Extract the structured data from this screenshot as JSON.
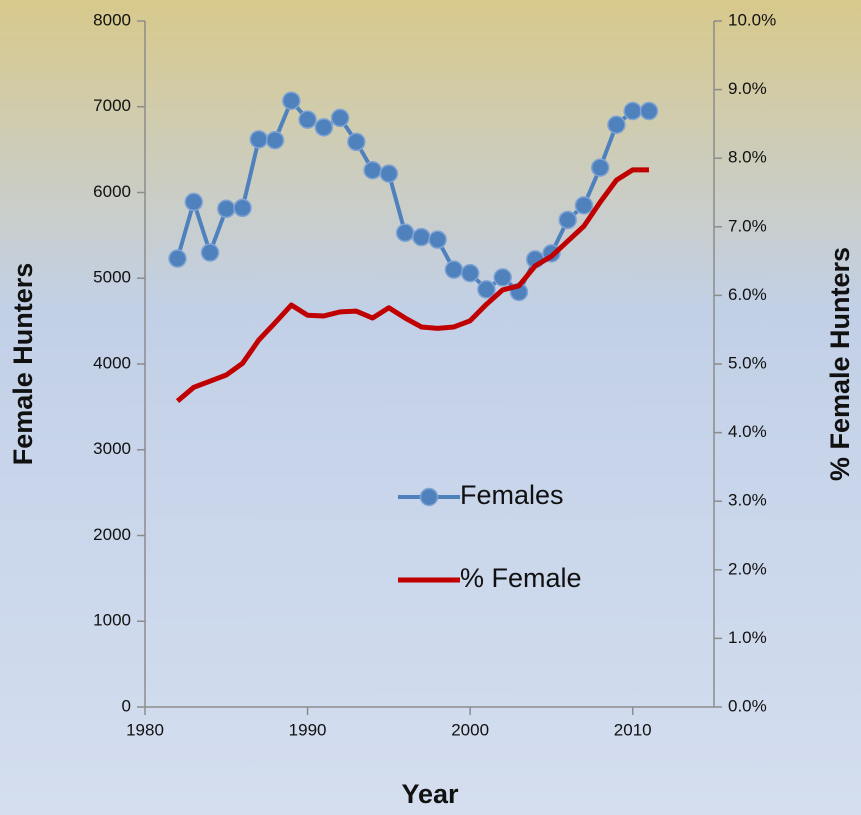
{
  "chart_data": {
    "type": "line",
    "x_label": "Year",
    "y_label": "Female Hunters",
    "y2_label": "% Female Hunters",
    "x": [
      1982,
      1983,
      1984,
      1985,
      1986,
      1987,
      1988,
      1989,
      1990,
      1991,
      1992,
      1993,
      1994,
      1995,
      1996,
      1997,
      1998,
      1999,
      2000,
      2001,
      2002,
      2003,
      2004,
      2005,
      2006,
      2007,
      2008,
      2009,
      2010,
      2011
    ],
    "series": [
      {
        "name": "Females",
        "color": "#4f81bd",
        "marker": "circle",
        "values": [
          5230,
          5890,
          5300,
          5810,
          5820,
          6620,
          6610,
          7070,
          6850,
          6760,
          6870,
          6590,
          6260,
          6220,
          5530,
          5480,
          5450,
          5100,
          5060,
          4870,
          5010,
          4840,
          5220,
          5290,
          5680,
          5850,
          6290,
          6790,
          6950,
          6950
        ]
      },
      {
        "name": "% Female",
        "color": "#c00000",
        "axis": "y2",
        "values": [
          4.46,
          4.66,
          4.75,
          4.84,
          5.01,
          5.35,
          5.6,
          5.86,
          5.71,
          5.7,
          5.76,
          5.77,
          5.67,
          5.82,
          5.67,
          5.54,
          5.52,
          5.54,
          5.63,
          5.87,
          6.08,
          6.14,
          6.43,
          6.57,
          6.79,
          7.01,
          7.36,
          7.68,
          7.83,
          7.83
        ]
      }
    ],
    "xlim": [
      1980,
      2015
    ],
    "xticks": [
      1980,
      1990,
      2000,
      2010
    ],
    "ylim": [
      0,
      8000
    ],
    "yticks": [
      0,
      1000,
      2000,
      3000,
      4000,
      5000,
      6000,
      7000,
      8000
    ],
    "y2lim": [
      0,
      10
    ],
    "y2ticks": [
      {
        "value": 0,
        "label": "0.0%"
      },
      {
        "value": 1,
        "label": "1.0%"
      },
      {
        "value": 2,
        "label": "2.0%"
      },
      {
        "value": 3,
        "label": "3.0%"
      },
      {
        "value": 4,
        "label": "4.0%"
      },
      {
        "value": 5,
        "label": "5.0%"
      },
      {
        "value": 6,
        "label": "6.0%"
      },
      {
        "value": 7,
        "label": "7.0%"
      },
      {
        "value": 8,
        "label": "8.0%"
      },
      {
        "value": 9,
        "label": "9.0%"
      },
      {
        "value": 10,
        "label": "10.0%"
      }
    ],
    "legend": "center",
    "grid": false
  }
}
